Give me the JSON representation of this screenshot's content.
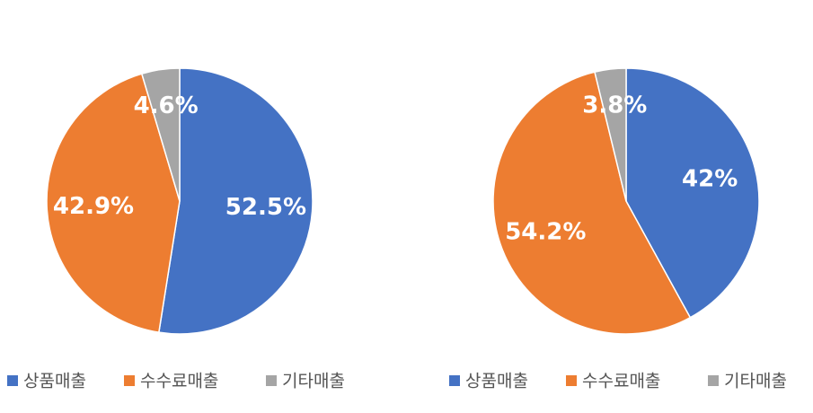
{
  "chart_data": [
    {
      "type": "pie",
      "categories": [
        "상품매출",
        "수수료매출",
        "기타매출"
      ],
      "values": [
        52.5,
        42.9,
        4.6
      ],
      "value_labels": [
        "52.5%",
        "42.9%",
        "4.6%"
      ],
      "colors": [
        "#4472c4",
        "#ed7d31",
        "#a5a5a5"
      ]
    },
    {
      "type": "pie",
      "categories": [
        "상품매출",
        "수수료매출",
        "기타매출"
      ],
      "values": [
        42,
        54.2,
        3.8
      ],
      "value_labels": [
        "42%",
        "54.2%",
        "3.8%"
      ],
      "colors": [
        "#4472c4",
        "#ed7d31",
        "#a5a5a5"
      ]
    }
  ]
}
